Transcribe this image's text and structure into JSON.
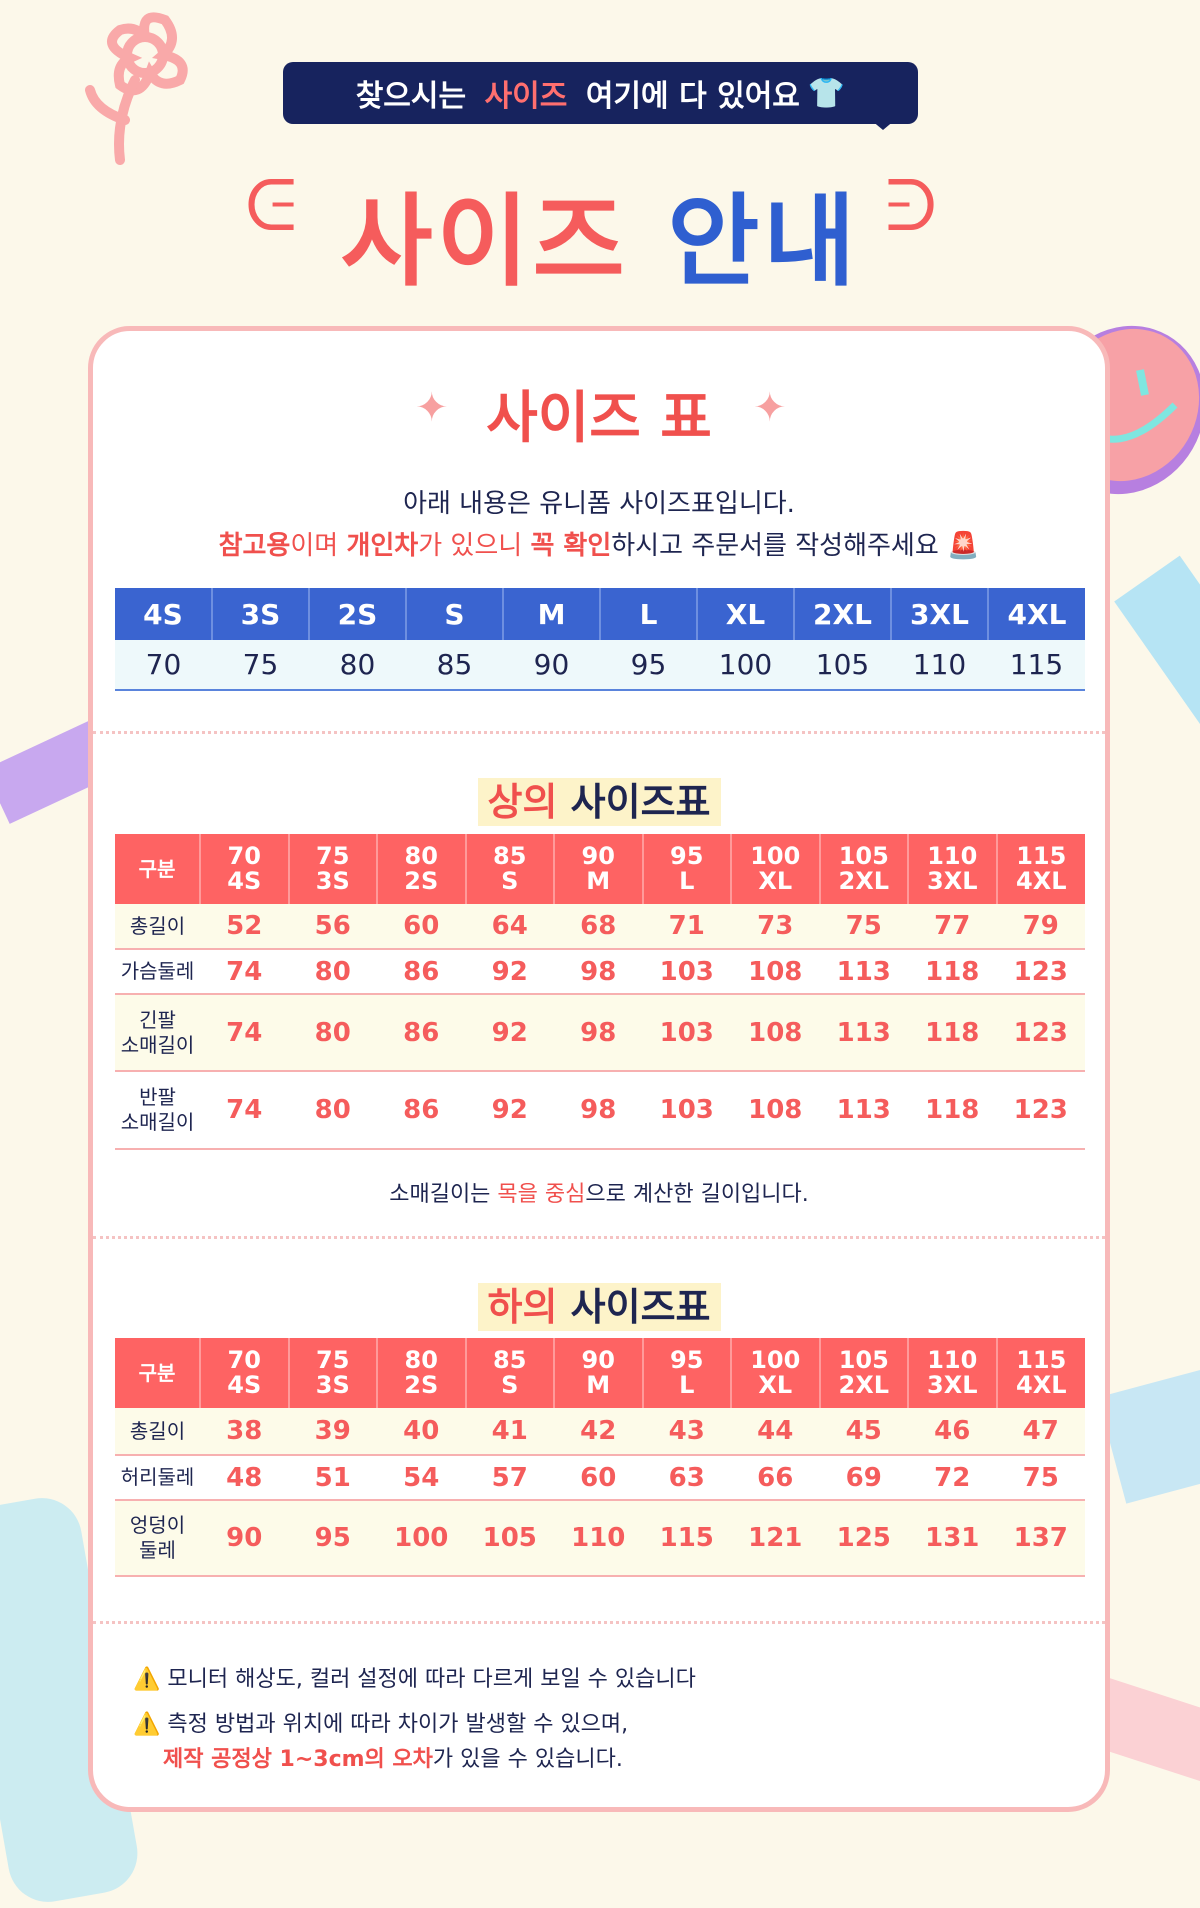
{
  "colors": {
    "accent_red": "#f55c5c",
    "accent_blue": "#2f5fd0",
    "navy": "#17235e",
    "background": "#fcf8ea"
  },
  "badge": {
    "pre": "찾으시는 ",
    "highlight": "사이즈",
    "post": " 여기에 다 있어요",
    "icon": "tshirt-icon"
  },
  "title": {
    "part1": "사이즈",
    "part2": "안내"
  },
  "card": {
    "heading": "사이즈 표",
    "intro1": "아래 내용은 유니폼 사이즈표입니다.",
    "intro2": {
      "r1": "참고용",
      "t1": "이며 ",
      "r2": "개인차",
      "t2": "가 있으니 ",
      "r3": "꼭 확인",
      "t3": "하시고 주문서를 작성해주세요",
      "icon": "siren-icon"
    },
    "size_table": {
      "headers": [
        "4S",
        "3S",
        "2S",
        "S",
        "M",
        "L",
        "XL",
        "2XL",
        "3XL",
        "4XL"
      ],
      "values": [
        "70",
        "75",
        "80",
        "85",
        "90",
        "95",
        "100",
        "105",
        "110",
        "115"
      ]
    },
    "top": {
      "title_red": "상의",
      "title_rest": " 사이즈표",
      "header_label": "구분",
      "columns": [
        [
          "70",
          "4S"
        ],
        [
          "75",
          "3S"
        ],
        [
          "80",
          "2S"
        ],
        [
          "85",
          "S"
        ],
        [
          "90",
          "M"
        ],
        [
          "95",
          "L"
        ],
        [
          "100",
          "XL"
        ],
        [
          "105",
          "2XL"
        ],
        [
          "110",
          "3XL"
        ],
        [
          "115",
          "4XL"
        ]
      ],
      "rows": [
        {
          "label": [
            "총길이"
          ],
          "values": [
            "52",
            "56",
            "60",
            "64",
            "68",
            "71",
            "73",
            "75",
            "77",
            "79"
          ]
        },
        {
          "label": [
            "가슴둘레"
          ],
          "values": [
            "74",
            "80",
            "86",
            "92",
            "98",
            "103",
            "108",
            "113",
            "118",
            "123"
          ]
        },
        {
          "label": [
            "긴팔",
            "소매길이"
          ],
          "values": [
            "74",
            "80",
            "86",
            "92",
            "98",
            "103",
            "108",
            "113",
            "118",
            "123"
          ]
        },
        {
          "label": [
            "반팔",
            "소매길이"
          ],
          "values": [
            "74",
            "80",
            "86",
            "92",
            "98",
            "103",
            "108",
            "113",
            "118",
            "123"
          ]
        }
      ],
      "note": {
        "t1": "소매길이는 ",
        "r": "목을 중심",
        "t2": "으로 계산한 길이입니다."
      }
    },
    "bottom": {
      "title_red": "하의",
      "title_rest": " 사이즈표",
      "header_label": "구분",
      "rows": [
        {
          "label": [
            "총길이"
          ],
          "values": [
            "38",
            "39",
            "40",
            "41",
            "42",
            "43",
            "44",
            "45",
            "46",
            "47"
          ]
        },
        {
          "label": [
            "허리둘레"
          ],
          "values": [
            "48",
            "51",
            "54",
            "57",
            "60",
            "63",
            "66",
            "69",
            "72",
            "75"
          ]
        },
        {
          "label": [
            "엉덩이",
            "둘레"
          ],
          "values": [
            "90",
            "95",
            "100",
            "105",
            "110",
            "115",
            "121",
            "125",
            "131",
            "137"
          ]
        }
      ]
    },
    "notes": {
      "n1": "모니터 해상도, 컬러 설정에 따라 다르게 보일 수 있습니다",
      "n2": "측정 방법과 위치에 따라 차이가 발생할 수 있으며,",
      "n3_red": "제작 공정상 1~3cm의 오차",
      "n3_rest": "가 있을 수 있습니다.",
      "icon": "warning-icon"
    }
  }
}
